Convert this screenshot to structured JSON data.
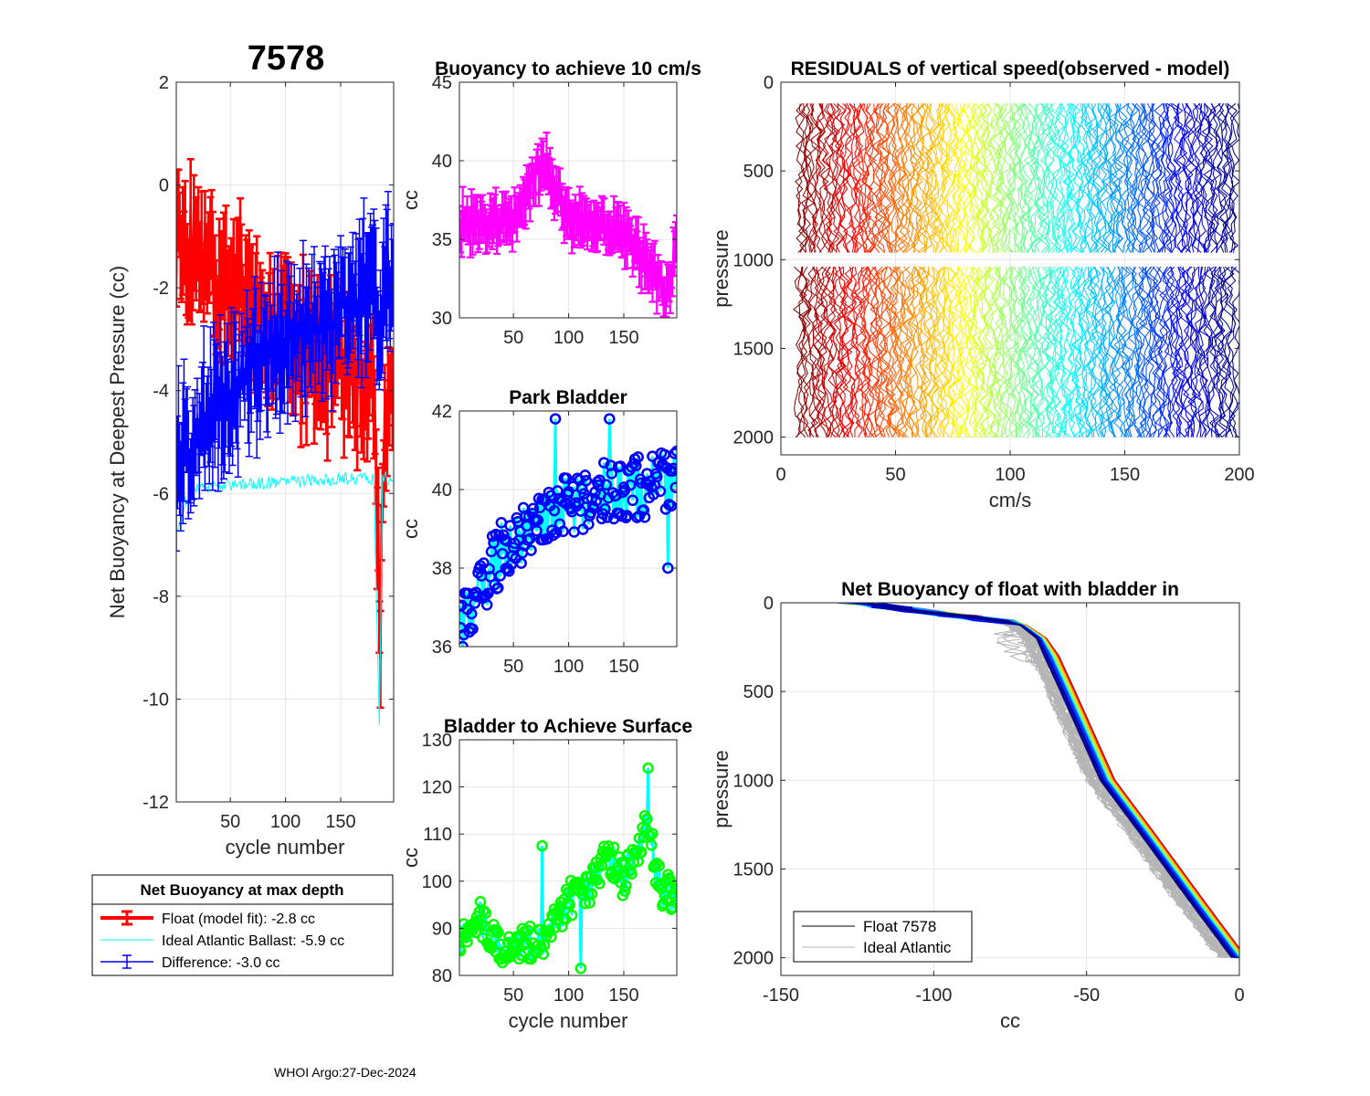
{
  "figure_title": "7578",
  "footer": "WHOI Argo:27-Dec-2024",
  "colors": {
    "red": "#ff0000",
    "blue": "#0000ff",
    "cyan": "#00ffff",
    "magenta": "#ff00ff",
    "green": "#00ff00",
    "grid": "#e6e6e6",
    "gray": "#b4b4b4"
  },
  "legends": {
    "net_buoyancy": {
      "title": "Net Buoyancy at max depth",
      "entries": [
        {
          "label": "Float (model fit):  -2.8 cc",
          "color": "#ff0000"
        },
        {
          "label": "Ideal Atlantic Ballast:  -5.9 cc",
          "color": "#00ffff"
        },
        {
          "label": "Difference:  -3.0 cc",
          "color": "#0000ff"
        }
      ]
    },
    "profiles": {
      "entries": [
        {
          "label": "Float 7578",
          "color": "#000000"
        },
        {
          "label": "Ideal Atlantic",
          "color": "#b4b4b4"
        }
      ]
    }
  },
  "chart_data": [
    {
      "id": "net_buoyancy",
      "type": "line",
      "title": "",
      "xlabel": "cycle number",
      "ylabel": "Net Buoyancy at Deepest Pressure (cc)",
      "xlim": [
        1,
        198
      ],
      "ylim": [
        -12,
        2
      ],
      "xticks": [
        50,
        100,
        150
      ],
      "yticks": [
        -12,
        -10,
        -8,
        -6,
        -4,
        -2,
        0,
        2
      ],
      "series_summary": [
        {
          "name": "Float (model fit)",
          "color": "#ff0000",
          "errorbars": true,
          "anchors_x": [
            1,
            20,
            40,
            60,
            80,
            100,
            120,
            140,
            160,
            180,
            186,
            190,
            198
          ],
          "anchors_y": [
            -1.0,
            -1.3,
            -1.8,
            -2.2,
            -2.6,
            -3.0,
            -3.2,
            -3.4,
            -3.5,
            -4.0,
            -8.6,
            -4.5,
            -4.3
          ]
        },
        {
          "name": "Ideal Atlantic Ballast",
          "color": "#00ffff",
          "errorbars": false,
          "anchors_x": [
            1,
            10,
            20,
            40,
            80,
            120,
            160,
            180,
            185,
            188,
            198
          ],
          "anchors_y": [
            -6.8,
            -6.1,
            -5.9,
            -5.85,
            -5.8,
            -5.75,
            -5.7,
            -5.7,
            -10.5,
            -5.7,
            -5.7
          ]
        },
        {
          "name": "Difference",
          "color": "#0000ff",
          "errorbars": true,
          "anchors_x": [
            1,
            20,
            40,
            60,
            80,
            100,
            120,
            140,
            160,
            180,
            186,
            190,
            198
          ],
          "anchors_y": [
            -5.6,
            -4.8,
            -4.2,
            -3.8,
            -3.4,
            -3.0,
            -2.8,
            -2.6,
            -2.4,
            -1.6,
            -2.9,
            -1.3,
            -2.0
          ]
        }
      ]
    },
    {
      "id": "buoyancy10",
      "type": "line",
      "title": "Buoyancy to achieve 10 cm/s",
      "xlabel": "",
      "ylabel": "cc",
      "xlim": [
        1,
        198
      ],
      "ylim": [
        30,
        45
      ],
      "xticks": [
        50,
        100,
        150
      ],
      "yticks": [
        30,
        35,
        40,
        45
      ],
      "series_summary": [
        {
          "name": "Buoyancy to achieve 10 cm/s",
          "color": "#ff00ff",
          "errorbars": true,
          "anchors_x": [
            1,
            50,
            76,
            100,
            150,
            190,
            198
          ],
          "anchors_y": [
            36.0,
            36.2,
            40.0,
            36.3,
            35.5,
            31.5,
            35.0
          ]
        }
      ]
    },
    {
      "id": "park_bladder",
      "type": "line",
      "title": "Park Bladder",
      "xlabel": "",
      "ylabel": "cc",
      "xlim": [
        1,
        198
      ],
      "ylim": [
        36,
        42
      ],
      "xticks": [
        50,
        100,
        150
      ],
      "yticks": [
        36,
        38,
        40,
        42
      ],
      "series_summary": [
        {
          "name": "Park Bladder",
          "color": "#00ffff",
          "marker_color": "#0000ff",
          "anchors_x": [
            1,
            20,
            40,
            60,
            80,
            100,
            120,
            140,
            160,
            180,
            198
          ],
          "anchors_y": [
            36.5,
            37.6,
            38.4,
            38.8,
            39.2,
            39.6,
            39.8,
            40.0,
            40.0,
            40.2,
            40.2
          ]
        }
      ]
    },
    {
      "id": "surface_bladder",
      "type": "line",
      "title": "Bladder to Achieve Surface",
      "xlabel": "cycle number",
      "ylabel": "cc",
      "xlim": [
        1,
        198
      ],
      "ylim": [
        80,
        130
      ],
      "xticks": [
        50,
        100,
        150
      ],
      "yticks": [
        80,
        90,
        100,
        110,
        120,
        130
      ],
      "series_summary": [
        {
          "name": "Bladder to Achieve Surface",
          "color": "#00ffff",
          "marker_color": "#00ff00",
          "anchors_x": [
            1,
            20,
            40,
            60,
            76,
            90,
            100,
            120,
            135,
            150,
            170,
            185,
            198
          ],
          "anchors_y": [
            87,
            92,
            84,
            88,
            86,
            92,
            96,
            98,
            106,
            100,
            112,
            98,
            97
          ]
        }
      ]
    },
    {
      "id": "residuals",
      "type": "line",
      "title": "RESIDUALS of vertical speed(observed - model)",
      "xlabel": "cm/s",
      "ylabel": "pressure",
      "xlim": [
        0,
        200
      ],
      "ylim": [
        0,
        2100
      ],
      "y_reversed": true,
      "xticks": [
        0,
        50,
        100,
        150,
        200
      ],
      "yticks": [
        0,
        500,
        1000,
        1500,
        2000
      ],
      "profile_count": 190,
      "profile_offset_range": [
        8,
        198
      ],
      "pressure_range": [
        120,
        2000
      ],
      "colormap": "jet"
    },
    {
      "id": "profiles",
      "type": "line",
      "title": "Net Buoyancy of float with bladder in",
      "xlabel": "cc",
      "ylabel": "pressure",
      "xlim": [
        -150,
        0
      ],
      "ylim": [
        0,
        2100
      ],
      "y_reversed": true,
      "xticks": [
        -150,
        -100,
        -50,
        0
      ],
      "yticks": [
        0,
        500,
        1000,
        1500,
        2000
      ],
      "profile_x_at": [
        -125,
        -72,
        -66,
        -58,
        -45,
        -32,
        -15,
        -2
      ],
      "profile_p_at": [
        0,
        120,
        200,
        500,
        1000,
        1300,
        1700,
        2000
      ],
      "colormap": "jet"
    }
  ]
}
